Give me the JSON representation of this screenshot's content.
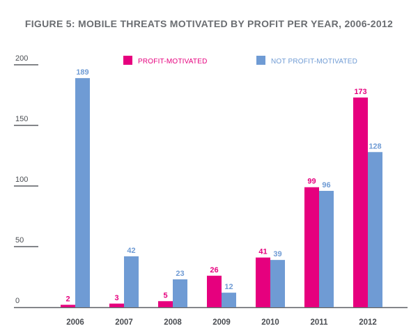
{
  "chart_data": {
    "type": "bar",
    "title": "FIGURE 5: MOBILE THREATS MOTIVATED BY PROFIT PER YEAR, 2006-2012",
    "xlabel": "",
    "ylabel": "",
    "categories": [
      "2006",
      "2007",
      "2008",
      "2009",
      "2010",
      "2011",
      "2012"
    ],
    "series": [
      {
        "name": "PROFIT-MOTIVATED",
        "color": "#e6007e",
        "values": [
          2,
          3,
          5,
          26,
          41,
          99,
          173
        ]
      },
      {
        "name": "NOT PROFIT-MOTIVATED",
        "color": "#6f9bd4",
        "values": [
          189,
          42,
          23,
          12,
          39,
          96,
          128
        ]
      }
    ],
    "ylim": [
      0,
      200
    ],
    "yticks": [
      0,
      50,
      100,
      150,
      200
    ],
    "grid": false,
    "legend": "top-right"
  }
}
